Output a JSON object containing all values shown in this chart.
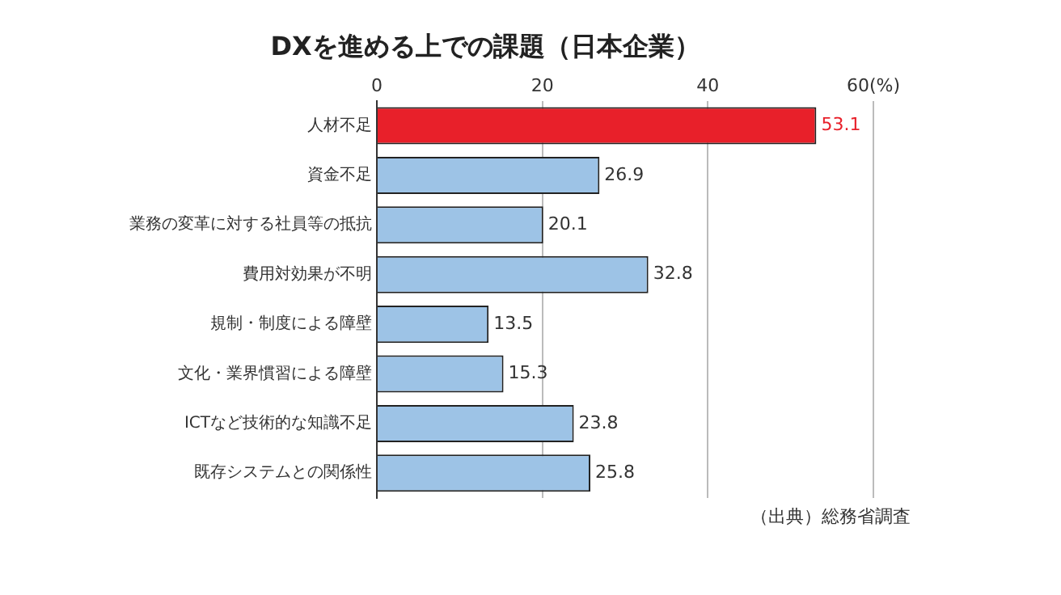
{
  "chart_data": {
    "type": "bar",
    "orientation": "horizontal",
    "title": "DXを進める上での課題（日本企業）",
    "categories": [
      "人材不足",
      "資金不足",
      "業務の変革に対する社員等の抵抗",
      "費用対効果が不明",
      "規制・制度による障壁",
      "文化・業界慣習による障壁",
      "ICTなど技術的な知識不足",
      "既存システムとの関係性"
    ],
    "values": [
      53.1,
      26.9,
      20.1,
      32.8,
      13.5,
      15.3,
      23.8,
      25.8
    ],
    "colors": [
      "#e8202a",
      "#9dc3e6",
      "#9dc3e6",
      "#9dc3e6",
      "#9dc3e6",
      "#9dc3e6",
      "#9dc3e6",
      "#9dc3e6"
    ],
    "xlim": [
      0,
      60
    ],
    "xticks": [
      0,
      20,
      40,
      {
        "value": 60,
        "label": "60(%)"
      }
    ],
    "grid": "x",
    "data_labels": true,
    "legend": false,
    "annotations": [
      "（出典）総務省調査"
    ]
  }
}
